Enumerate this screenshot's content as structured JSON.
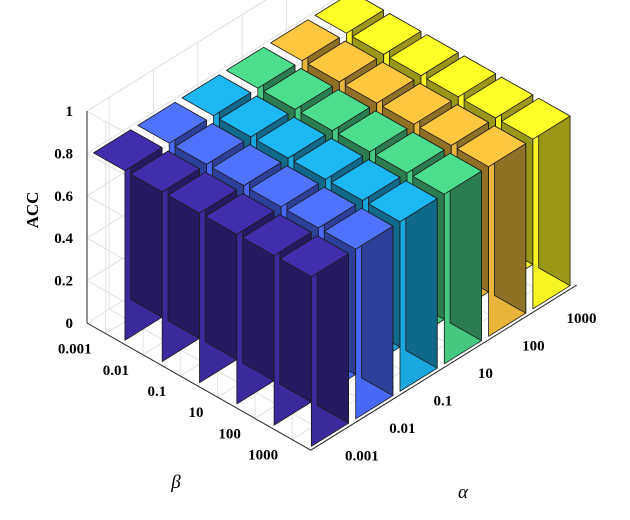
{
  "chart_data": {
    "type": "bar3d",
    "ylabel": "ACC",
    "alpha_label": "α",
    "beta_label": "β",
    "alpha_values": [
      "0.001",
      "0.01",
      "0.1",
      "10",
      "100",
      "1000"
    ],
    "beta_values": [
      "0.001",
      "0.01",
      "0.1",
      "10",
      "100",
      "1000"
    ],
    "zlim": [
      0,
      1
    ],
    "z_ticks": [
      "0",
      "0.2",
      "0.4",
      "0.6",
      "0.8",
      "1"
    ],
    "grid": true,
    "colors": [
      "#3b2a9c",
      "#4868f6",
      "#1aa7de",
      "#45c982",
      "#e9b43a",
      "#f8f424"
    ],
    "values": [
      [
        0.8,
        0.8,
        0.8,
        0.8,
        0.8,
        0.8
      ],
      [
        0.8,
        0.8,
        0.8,
        0.8,
        0.8,
        0.8
      ],
      [
        0.8,
        0.8,
        0.8,
        0.8,
        0.8,
        0.8
      ],
      [
        0.8,
        0.8,
        0.8,
        0.8,
        0.8,
        0.8
      ],
      [
        0.8,
        0.8,
        0.8,
        0.8,
        0.8,
        0.8
      ],
      [
        0.8,
        0.8,
        0.8,
        0.8,
        0.8,
        0.8
      ]
    ]
  }
}
